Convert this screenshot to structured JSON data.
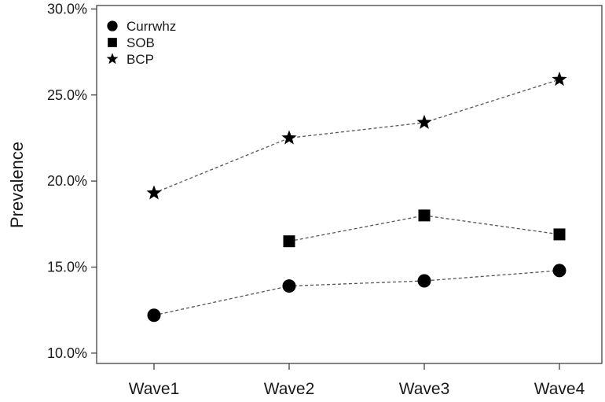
{
  "chart_data": {
    "type": "line",
    "title": "",
    "xlabel": "",
    "ylabel": "Prevalence",
    "categories": [
      "Wave1",
      "Wave2",
      "Wave3",
      "Wave4"
    ],
    "ylim": [
      0.094,
      0.302
    ],
    "yticks": [
      0.1,
      0.15,
      0.2,
      0.25,
      0.3
    ],
    "ytick_labels": [
      "10.0%",
      "15.0%",
      "20.0%",
      "25.0%",
      "30.0%"
    ],
    "grid": false,
    "legend_position": "top-left",
    "series": [
      {
        "name": "Currwhz",
        "marker": "circle",
        "values": [
          0.122,
          0.139,
          0.142,
          0.148
        ]
      },
      {
        "name": "SOB",
        "marker": "square",
        "values": [
          null,
          0.165,
          0.18,
          0.169
        ]
      },
      {
        "name": "BCP",
        "marker": "star",
        "values": [
          0.193,
          0.225,
          0.234,
          0.259
        ]
      }
    ],
    "colors": {
      "marker": "#000000",
      "line": "#555555",
      "axis": "#333333"
    }
  }
}
